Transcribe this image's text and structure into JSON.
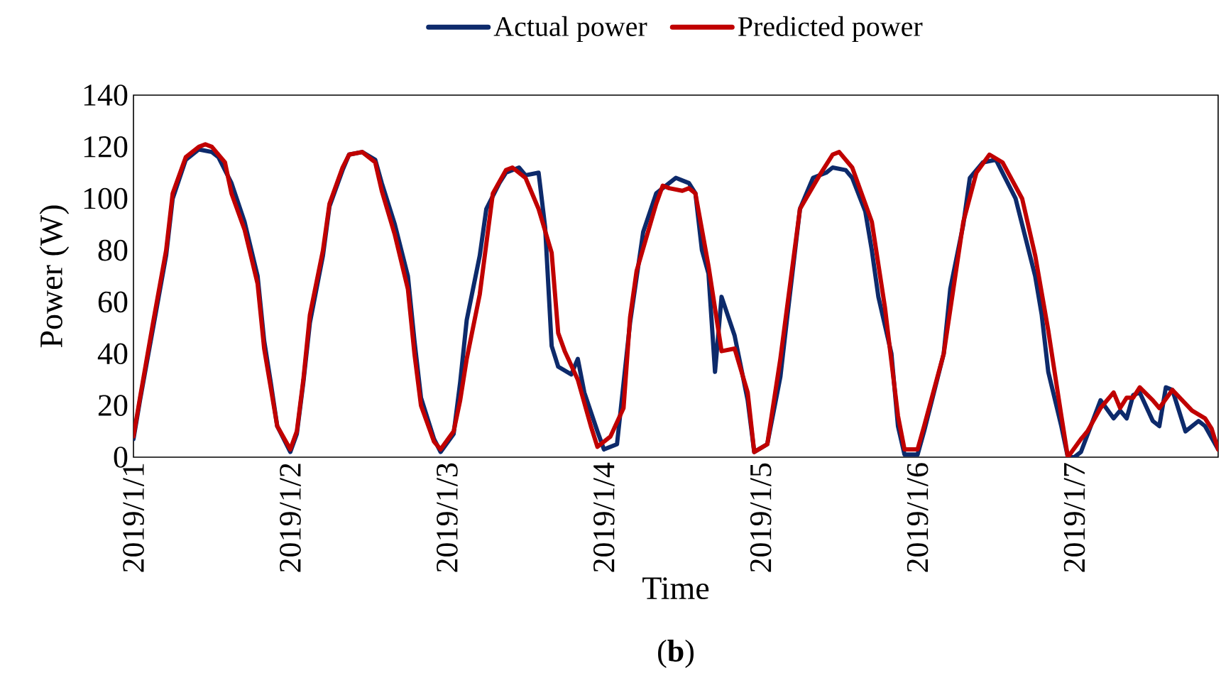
{
  "chart_data": {
    "type": "line",
    "xlabel": "Time",
    "ylabel": "Power (W)",
    "annotations": [
      "(**b**)"
    ],
    "xlim": [
      "2019-01-01T00:00",
      "2019-01-07T22:00"
    ],
    "xticks": [
      {
        "value": "2019-01-01",
        "label": "2019/1/1"
      },
      {
        "value": "2019-01-02",
        "label": "2019/1/2"
      },
      {
        "value": "2019-01-03",
        "label": "2019/1/3"
      },
      {
        "value": "2019-01-04",
        "label": "2019/1/4"
      },
      {
        "value": "2019-01-05",
        "label": "2019/1/5"
      },
      {
        "value": "2019-01-06",
        "label": "2019/1/6"
      },
      {
        "value": "2019-01-07",
        "label": "2019/1/7"
      }
    ],
    "ylim": [
      0,
      140
    ],
    "yticks": [
      0,
      20,
      40,
      60,
      80,
      100,
      120,
      140
    ],
    "legend": "top",
    "series": [
      {
        "name": "Actual power",
        "color": "#0d2a6b",
        "x": [
          "2019-01-01T00:00",
          "2019-01-01T01:00",
          "2019-01-01T03:00",
          "2019-01-01T05:00",
          "2019-01-01T06:00",
          "2019-01-01T08:00",
          "2019-01-01T10:00",
          "2019-01-01T12:00",
          "2019-01-01T13:00",
          "2019-01-01T15:00",
          "2019-01-01T17:00",
          "2019-01-01T19:00",
          "2019-01-01T20:00",
          "2019-01-01T21:00",
          "2019-01-01T22:00",
          "2019-01-02T00:00",
          "2019-01-02T01:00",
          "2019-01-02T02:00",
          "2019-01-02T03:00",
          "2019-01-02T05:00",
          "2019-01-02T06:00",
          "2019-01-02T08:00",
          "2019-01-02T09:00",
          "2019-01-02T11:00",
          "2019-01-02T13:00",
          "2019-01-02T14:00",
          "2019-01-02T16:00",
          "2019-01-02T18:00",
          "2019-01-02T19:00",
          "2019-01-02T20:00",
          "2019-01-02T22:00",
          "2019-01-02T23:00",
          "2019-01-03T01:00",
          "2019-01-03T02:00",
          "2019-01-03T03:00",
          "2019-01-03T05:00",
          "2019-01-03T06:00",
          "2019-01-03T08:00",
          "2019-01-03T09:00",
          "2019-01-03T11:00",
          "2019-01-03T12:00",
          "2019-01-03T14:00",
          "2019-01-03T15:00",
          "2019-01-03T16:00",
          "2019-01-03T17:00",
          "2019-01-03T19:00",
          "2019-01-03T20:00",
          "2019-01-03T21:00",
          "2019-01-03T23:00",
          "2019-01-04T00:00",
          "2019-01-04T02:00",
          "2019-01-04T04:00",
          "2019-01-04T06:00",
          "2019-01-04T08:00",
          "2019-01-04T10:00",
          "2019-01-04T11:00",
          "2019-01-04T13:00",
          "2019-01-04T14:00",
          "2019-01-04T15:00",
          "2019-01-04T16:00",
          "2019-01-04T17:00",
          "2019-01-04T18:00",
          "2019-01-04T20:00",
          "2019-01-04T22:00",
          "2019-01-04T23:00",
          "2019-01-05T01:00",
          "2019-01-05T03:00",
          "2019-01-05T04:00",
          "2019-01-05T06:00",
          "2019-01-05T08:00",
          "2019-01-05T10:00",
          "2019-01-05T11:00",
          "2019-01-05T13:00",
          "2019-01-05T14:00",
          "2019-01-05T16:00",
          "2019-01-05T17:00",
          "2019-01-05T18:00",
          "2019-01-05T20:00",
          "2019-01-05T21:00",
          "2019-01-05T22:00",
          "2019-01-06T00:00",
          "2019-01-06T01:00",
          "2019-01-06T04:00",
          "2019-01-06T05:00",
          "2019-01-06T07:00",
          "2019-01-06T08:00",
          "2019-01-06T10:00",
          "2019-01-06T12:00",
          "2019-01-06T13:00",
          "2019-01-06T15:00",
          "2019-01-06T18:00",
          "2019-01-06T19:00",
          "2019-01-06T20:00",
          "2019-01-06T22:00",
          "2019-01-06T23:00",
          "2019-01-07T00:00",
          "2019-01-07T01:00",
          "2019-01-07T04:00",
          "2019-01-07T06:00",
          "2019-01-07T07:00",
          "2019-01-07T08:00",
          "2019-01-07T09:00",
          "2019-01-07T10:00",
          "2019-01-07T12:00",
          "2019-01-07T13:00",
          "2019-01-07T14:00",
          "2019-01-07T15:00",
          "2019-01-07T17:00",
          "2019-01-07T19:00",
          "2019-01-07T20:00",
          "2019-01-07T22:00"
        ],
        "values": [
          7,
          22,
          50,
          78,
          100,
          115,
          119,
          118,
          116,
          106,
          91,
          70,
          45,
          29,
          12,
          2,
          9,
          29,
          52,
          78,
          97,
          111,
          117,
          118,
          115,
          106,
          90,
          70,
          45,
          23,
          7,
          2,
          9,
          29,
          53,
          78,
          96,
          106,
          110,
          112,
          109,
          110,
          89,
          43,
          35,
          32,
          38,
          25,
          10,
          3,
          5,
          52,
          87,
          102,
          106,
          108,
          106,
          102,
          80,
          71,
          33,
          62,
          47,
          22,
          2,
          5,
          31,
          53,
          96,
          108,
          110,
          112,
          111,
          108,
          95,
          80,
          62,
          40,
          12,
          1,
          1,
          10,
          40,
          65,
          90,
          108,
          114,
          115,
          110,
          100,
          70,
          55,
          33,
          12,
          0,
          0,
          2,
          22,
          15,
          18,
          15,
          24,
          25,
          14,
          12,
          27,
          26,
          10,
          14,
          12,
          3
        ]
      },
      {
        "name": "Predicted power",
        "color": "#c00000",
        "x": [
          "2019-01-01T00:00",
          "2019-01-01T01:00",
          "2019-01-01T03:00",
          "2019-01-01T05:00",
          "2019-01-01T06:00",
          "2019-01-01T08:00",
          "2019-01-01T10:00",
          "2019-01-01T11:00",
          "2019-01-01T12:00",
          "2019-01-01T14:00",
          "2019-01-01T15:00",
          "2019-01-01T17:00",
          "2019-01-01T19:00",
          "2019-01-01T20:00",
          "2019-01-01T21:00",
          "2019-01-01T22:00",
          "2019-01-02T00:00",
          "2019-01-02T01:00",
          "2019-01-02T02:00",
          "2019-01-02T03:00",
          "2019-01-02T05:00",
          "2019-01-02T06:00",
          "2019-01-02T08:00",
          "2019-01-02T09:00",
          "2019-01-02T11:00",
          "2019-01-02T13:00",
          "2019-01-02T14:00",
          "2019-01-02T16:00",
          "2019-01-02T18:00",
          "2019-01-02T19:00",
          "2019-01-02T20:00",
          "2019-01-02T22:00",
          "2019-01-02T23:00",
          "2019-01-03T01:00",
          "2019-01-03T02:00",
          "2019-01-03T03:00",
          "2019-01-03T05:00",
          "2019-01-03T07:00",
          "2019-01-03T09:00",
          "2019-01-03T10:00",
          "2019-01-03T12:00",
          "2019-01-03T14:00",
          "2019-01-03T16:00",
          "2019-01-03T17:00",
          "2019-01-03T18:00",
          "2019-01-03T20:00",
          "2019-01-03T22:00",
          "2019-01-03T23:00",
          "2019-01-04T01:00",
          "2019-01-04T03:00",
          "2019-01-04T04:00",
          "2019-01-04T05:00",
          "2019-01-04T08:00",
          "2019-01-04T09:00",
          "2019-01-04T10:00",
          "2019-01-04T12:00",
          "2019-01-04T13:00",
          "2019-01-04T14:00",
          "2019-01-04T16:00",
          "2019-01-04T18:00",
          "2019-01-04T20:00",
          "2019-01-04T22:00",
          "2019-01-04T23:00",
          "2019-01-05T01:00",
          "2019-01-05T03:00",
          "2019-01-05T06:00",
          "2019-01-05T09:00",
          "2019-01-05T11:00",
          "2019-01-05T12:00",
          "2019-01-05T14:00",
          "2019-01-05T17:00",
          "2019-01-05T19:00",
          "2019-01-05T21:00",
          "2019-01-05T22:00",
          "2019-01-06T00:00",
          "2019-01-06T01:00",
          "2019-01-06T04:00",
          "2019-01-06T07:00",
          "2019-01-06T09:00",
          "2019-01-06T11:00",
          "2019-01-06T13:00",
          "2019-01-06T16:00",
          "2019-01-06T18:00",
          "2019-01-06T20:00",
          "2019-01-06T22:00",
          "2019-01-06T23:00",
          "2019-01-07T01:00",
          "2019-01-07T02:00",
          "2019-01-07T04:00",
          "2019-01-07T06:00",
          "2019-01-07T07:00",
          "2019-01-07T08:00",
          "2019-01-07T09:00",
          "2019-01-07T10:00",
          "2019-01-07T12:00",
          "2019-01-07T13:00",
          "2019-01-07T15:00",
          "2019-01-07T18:00",
          "2019-01-07T20:00",
          "2019-01-07T21:00",
          "2019-01-07T22:00"
        ],
        "values": [
          8,
          23,
          52,
          80,
          102,
          116,
          120,
          121,
          120,
          114,
          102,
          88,
          67,
          42,
          27,
          12,
          3,
          10,
          30,
          55,
          80,
          98,
          112,
          117,
          118,
          114,
          103,
          86,
          65,
          40,
          20,
          6,
          3,
          10,
          22,
          38,
          63,
          102,
          111,
          112,
          108,
          96,
          79,
          48,
          41,
          30,
          12,
          4,
          8,
          19,
          54,
          72,
          98,
          105,
          104,
          103,
          104,
          102,
          74,
          41,
          42,
          25,
          2,
          5,
          38,
          96,
          109,
          117,
          118,
          112,
          91,
          58,
          16,
          3,
          3,
          12,
          40,
          91,
          110,
          117,
          114,
          100,
          78,
          49,
          16,
          0,
          7,
          10,
          19,
          25,
          19,
          23,
          23,
          27,
          22,
          19,
          26,
          18,
          15,
          11,
          3
        ]
      }
    ]
  }
}
